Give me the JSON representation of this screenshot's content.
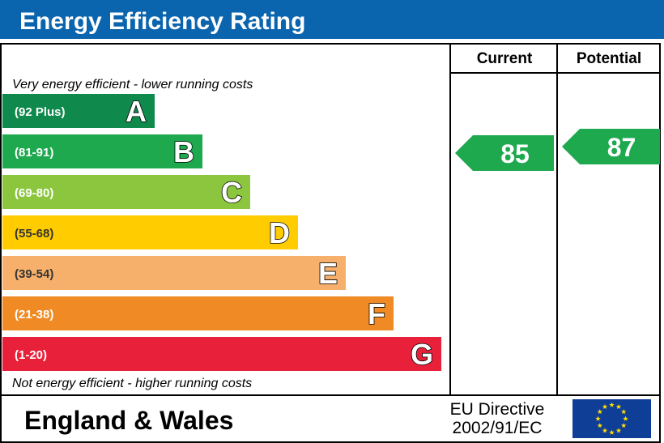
{
  "chart_data": {
    "type": "bar",
    "title": "Energy Efficiency Rating",
    "column_headers": {
      "current": "Current",
      "potential": "Potential"
    },
    "top_note": "Very energy efficient - lower running costs",
    "bottom_note": "Not energy efficient - higher running costs",
    "bands": [
      {
        "letter": "A",
        "range": "(92 Plus)",
        "color": "#0f8a4c"
      },
      {
        "letter": "B",
        "range": "(81-91)",
        "color": "#1ea94f"
      },
      {
        "letter": "C",
        "range": "(69-80)",
        "color": "#8cc63f"
      },
      {
        "letter": "D",
        "range": "(55-68)",
        "color": "#ffcc00"
      },
      {
        "letter": "E",
        "range": "(39-54)",
        "color": "#f7b06b"
      },
      {
        "letter": "F",
        "range": "(21-38)",
        "color": "#f08a24"
      },
      {
        "letter": "G",
        "range": "(1-20)",
        "color": "#e8203a"
      }
    ],
    "current": {
      "value": 85,
      "band": "B",
      "color": "#1ea94f"
    },
    "potential": {
      "value": 87,
      "band": "B",
      "color": "#1ea94f"
    }
  },
  "footer": {
    "region": "England & Wales",
    "directive_line1": "EU Directive",
    "directive_line2": "2002/91/EC"
  },
  "colors": {
    "title_bar": "#0b64ae",
    "border": "#000000",
    "eu_flag": "#0f3e97",
    "eu_stars": "#ffdd00"
  }
}
